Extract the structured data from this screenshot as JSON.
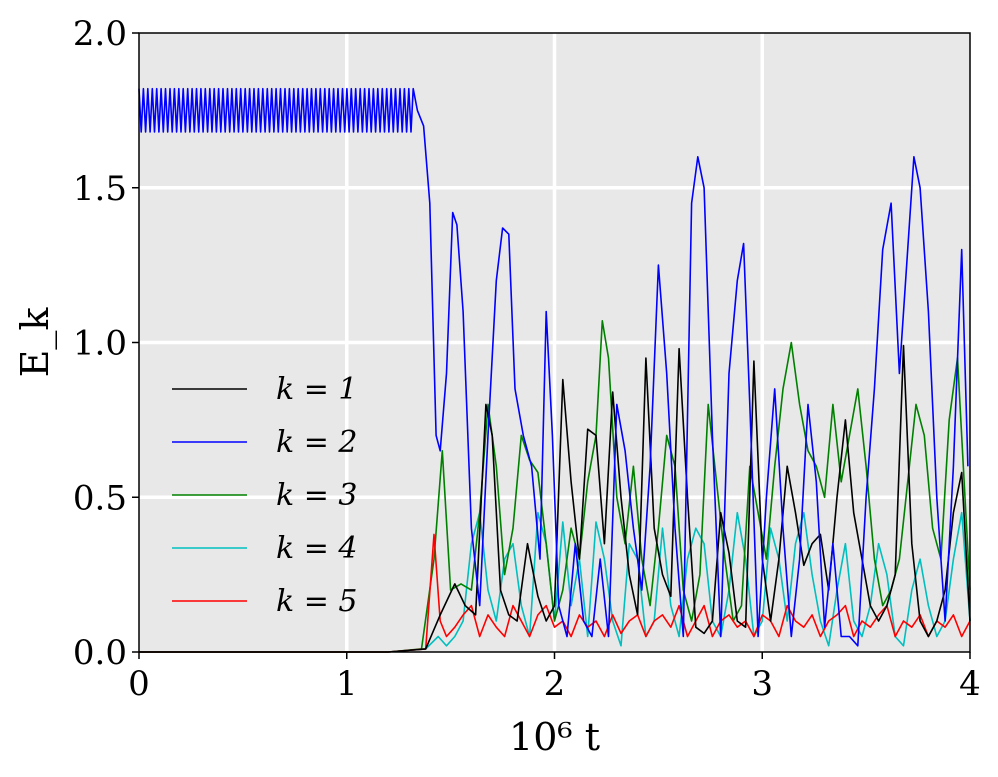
{
  "chart_data": {
    "type": "line",
    "xlabel": "10⁶ t",
    "ylabel": "E_k",
    "xlim": [
      0,
      4
    ],
    "ylim": [
      0,
      2.0
    ],
    "x_ticks": [
      "0",
      "1",
      "2",
      "3",
      "4"
    ],
    "y_ticks": [
      "0.0",
      "0.5",
      "1.0",
      "1.5",
      "2.0"
    ],
    "grid": true,
    "background": "#e8e8e8",
    "legend_position": "lower-left",
    "series": [
      {
        "name": "k = 1",
        "color": "#000000",
        "x": [
          0,
          1.2,
          1.38,
          1.45,
          1.52,
          1.57,
          1.62,
          1.67,
          1.7,
          1.74,
          1.78,
          1.82,
          1.87,
          1.92,
          1.96,
          2.0,
          2.04,
          2.08,
          2.12,
          2.16,
          2.2,
          2.24,
          2.28,
          2.32,
          2.36,
          2.4,
          2.44,
          2.48,
          2.52,
          2.56,
          2.6,
          2.64,
          2.68,
          2.72,
          2.76,
          2.8,
          2.84,
          2.88,
          2.92,
          2.96,
          3.0,
          3.04,
          3.08,
          3.12,
          3.16,
          3.2,
          3.24,
          3.28,
          3.32,
          3.36,
          3.4,
          3.44,
          3.48,
          3.52,
          3.56,
          3.6,
          3.64,
          3.68,
          3.72,
          3.76,
          3.8,
          3.84,
          3.88,
          3.92,
          3.96,
          4.0
        ],
        "y": [
          0,
          0,
          0.01,
          0.12,
          0.22,
          0.15,
          0.12,
          0.8,
          0.7,
          0.2,
          0.12,
          0.1,
          0.35,
          0.18,
          0.1,
          0.15,
          0.88,
          0.55,
          0.3,
          0.72,
          0.7,
          0.35,
          0.84,
          0.5,
          0.25,
          0.12,
          0.95,
          0.4,
          0.25,
          0.18,
          0.98,
          0.5,
          0.08,
          0.06,
          0.1,
          0.45,
          0.32,
          0.1,
          0.08,
          0.94,
          0.3,
          0.1,
          0.3,
          0.6,
          0.45,
          0.28,
          0.35,
          0.38,
          0.2,
          0.5,
          0.75,
          0.45,
          0.3,
          0.15,
          0.1,
          0.15,
          0.25,
          0.99,
          0.35,
          0.1,
          0.05,
          0.1,
          0.2,
          0.45,
          0.58,
          0.1
        ]
      },
      {
        "name": "k = 2",
        "color": "#0000ff",
        "x": [
          0,
          1.3,
          1.34,
          1.37,
          1.4,
          1.43,
          1.45,
          1.48,
          1.51,
          1.53,
          1.56,
          1.6,
          1.64,
          1.68,
          1.72,
          1.75,
          1.78,
          1.81,
          1.85,
          1.89,
          1.93,
          1.96,
          1.99,
          2.02,
          2.06,
          2.1,
          2.14,
          2.18,
          2.22,
          2.26,
          2.3,
          2.34,
          2.38,
          2.42,
          2.46,
          2.5,
          2.54,
          2.58,
          2.62,
          2.66,
          2.69,
          2.72,
          2.76,
          2.8,
          2.84,
          2.88,
          2.91,
          2.94,
          2.98,
          3.02,
          3.06,
          3.1,
          3.14,
          3.18,
          3.22,
          3.26,
          3.3,
          3.34,
          3.38,
          3.42,
          3.46,
          3.5,
          3.54,
          3.58,
          3.62,
          3.66,
          3.7,
          3.73,
          3.76,
          3.8,
          3.84,
          3.88,
          3.92,
          3.96,
          3.99
        ],
        "y": [
          1.75,
          1.75,
          1.75,
          1.7,
          1.45,
          0.7,
          0.65,
          0.9,
          1.42,
          1.38,
          1.1,
          0.4,
          0.15,
          0.7,
          1.2,
          1.37,
          1.35,
          0.85,
          0.7,
          0.6,
          0.3,
          1.1,
          0.7,
          0.15,
          0.05,
          0.35,
          0.1,
          0.05,
          0.3,
          0.05,
          0.8,
          0.65,
          0.4,
          0.2,
          0.6,
          1.25,
          0.9,
          0.4,
          0.05,
          1.45,
          1.6,
          1.5,
          0.7,
          0.05,
          0.9,
          1.2,
          1.32,
          0.8,
          0.05,
          0.5,
          0.85,
          0.4,
          0.05,
          0.3,
          0.8,
          0.55,
          0.08,
          0.35,
          0.05,
          0.05,
          0.02,
          0.5,
          0.85,
          1.3,
          1.45,
          0.9,
          1.3,
          1.6,
          1.5,
          1.1,
          0.5,
          0.1,
          0.6,
          1.3,
          0.6
        ]
      },
      {
        "name": "k = 3",
        "color": "#008000",
        "x": [
          0,
          1.2,
          1.36,
          1.42,
          1.46,
          1.5,
          1.55,
          1.6,
          1.64,
          1.68,
          1.72,
          1.76,
          1.8,
          1.84,
          1.88,
          1.92,
          1.96,
          2.0,
          2.04,
          2.08,
          2.12,
          2.16,
          2.2,
          2.23,
          2.26,
          2.3,
          2.34,
          2.38,
          2.42,
          2.46,
          2.5,
          2.54,
          2.58,
          2.62,
          2.66,
          2.7,
          2.74,
          2.78,
          2.82,
          2.86,
          2.9,
          2.94,
          2.98,
          3.02,
          3.06,
          3.1,
          3.14,
          3.18,
          3.22,
          3.26,
          3.3,
          3.34,
          3.38,
          3.42,
          3.46,
          3.5,
          3.54,
          3.58,
          3.62,
          3.66,
          3.7,
          3.74,
          3.78,
          3.82,
          3.86,
          3.9,
          3.94,
          3.98,
          4.0
        ],
        "y": [
          0,
          0,
          0.01,
          0.3,
          0.65,
          0.2,
          0.22,
          0.2,
          0.45,
          0.8,
          0.6,
          0.25,
          0.4,
          0.7,
          0.62,
          0.58,
          0.35,
          0.1,
          0.2,
          0.4,
          0.3,
          0.55,
          0.7,
          1.07,
          0.95,
          0.5,
          0.35,
          0.6,
          0.3,
          0.15,
          0.4,
          0.7,
          0.6,
          0.2,
          0.1,
          0.25,
          0.8,
          0.55,
          0.3,
          0.1,
          0.15,
          0.6,
          0.45,
          0.3,
          0.6,
          0.85,
          1.0,
          0.8,
          0.65,
          0.6,
          0.5,
          0.8,
          0.55,
          0.7,
          0.85,
          0.6,
          0.3,
          0.15,
          0.2,
          0.3,
          0.55,
          0.8,
          0.7,
          0.4,
          0.3,
          0.75,
          0.95,
          0.45,
          0.2
        ]
      },
      {
        "name": "k = 4",
        "color": "#00bfbf",
        "x": [
          0,
          1.2,
          1.38,
          1.44,
          1.48,
          1.52,
          1.56,
          1.6,
          1.64,
          1.68,
          1.72,
          1.76,
          1.8,
          1.84,
          1.88,
          1.92,
          1.96,
          2.0,
          2.04,
          2.08,
          2.12,
          2.16,
          2.2,
          2.24,
          2.28,
          2.32,
          2.36,
          2.4,
          2.44,
          2.48,
          2.52,
          2.56,
          2.6,
          2.64,
          2.68,
          2.72,
          2.76,
          2.8,
          2.84,
          2.88,
          2.92,
          2.96,
          3.0,
          3.04,
          3.08,
          3.12,
          3.16,
          3.2,
          3.24,
          3.28,
          3.32,
          3.36,
          3.4,
          3.44,
          3.48,
          3.52,
          3.56,
          3.6,
          3.64,
          3.68,
          3.72,
          3.76,
          3.8,
          3.84,
          3.88,
          3.92,
          3.96,
          4.0
        ],
        "y": [
          0,
          0,
          0.01,
          0.05,
          0.02,
          0.05,
          0.1,
          0.35,
          0.45,
          0.2,
          0.1,
          0.3,
          0.35,
          0.15,
          0.05,
          0.45,
          0.35,
          0.1,
          0.42,
          0.15,
          0.3,
          0.05,
          0.42,
          0.3,
          0.1,
          0.02,
          0.35,
          0.3,
          0.05,
          0.1,
          0.4,
          0.15,
          0.05,
          0.3,
          0.4,
          0.35,
          0.1,
          0.05,
          0.2,
          0.45,
          0.3,
          0.05,
          0.1,
          0.4,
          0.3,
          0.1,
          0.35,
          0.45,
          0.25,
          0.1,
          0.02,
          0.2,
          0.35,
          0.1,
          0.05,
          0.15,
          0.35,
          0.25,
          0.05,
          0.02,
          0.2,
          0.3,
          0.15,
          0.05,
          0.1,
          0.3,
          0.45,
          0.1
        ]
      },
      {
        "name": "k = 5",
        "color": "#ff0000",
        "x": [
          0,
          1.2,
          1.38,
          1.42,
          1.45,
          1.48,
          1.52,
          1.56,
          1.6,
          1.64,
          1.68,
          1.72,
          1.76,
          1.8,
          1.84,
          1.88,
          1.92,
          1.96,
          2.0,
          2.04,
          2.08,
          2.12,
          2.16,
          2.2,
          2.24,
          2.28,
          2.32,
          2.36,
          2.4,
          2.44,
          2.48,
          2.52,
          2.56,
          2.6,
          2.64,
          2.68,
          2.72,
          2.76,
          2.8,
          2.84,
          2.88,
          2.92,
          2.96,
          3.0,
          3.04,
          3.08,
          3.12,
          3.16,
          3.2,
          3.24,
          3.28,
          3.32,
          3.36,
          3.4,
          3.44,
          3.48,
          3.52,
          3.56,
          3.6,
          3.64,
          3.68,
          3.72,
          3.76,
          3.8,
          3.84,
          3.88,
          3.92,
          3.96,
          4.0
        ],
        "y": [
          0,
          0,
          0.01,
          0.38,
          0.1,
          0.05,
          0.08,
          0.12,
          0.15,
          0.05,
          0.12,
          0.08,
          0.05,
          0.15,
          0.1,
          0.05,
          0.12,
          0.15,
          0.08,
          0.1,
          0.05,
          0.12,
          0.08,
          0.1,
          0.05,
          0.12,
          0.06,
          0.1,
          0.12,
          0.05,
          0.1,
          0.12,
          0.08,
          0.15,
          0.05,
          0.1,
          0.15,
          0.05,
          0.1,
          0.12,
          0.08,
          0.1,
          0.05,
          0.12,
          0.1,
          0.05,
          0.15,
          0.1,
          0.08,
          0.12,
          0.05,
          0.1,
          0.12,
          0.15,
          0.05,
          0.1,
          0.08,
          0.12,
          0.15,
          0.05,
          0.1,
          0.08,
          0.12,
          0.05,
          0.1,
          0.08,
          0.12,
          0.05,
          0.1
        ]
      }
    ]
  }
}
